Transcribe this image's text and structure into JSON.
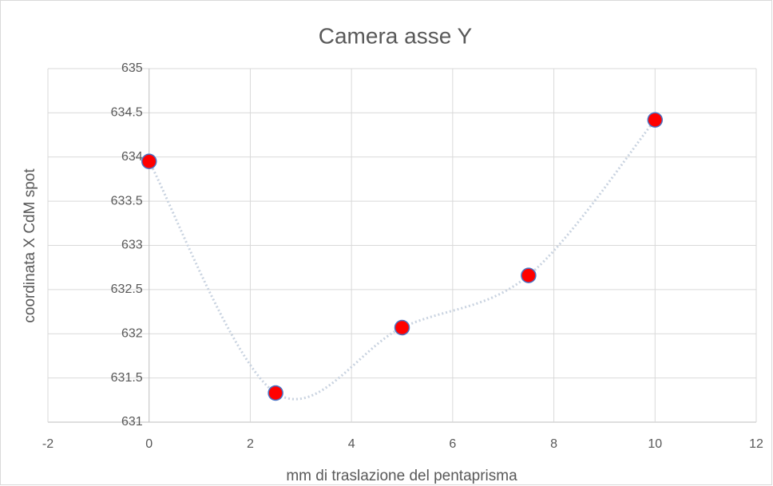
{
  "chart_data": {
    "type": "scatter",
    "title": "Camera asse Y",
    "x_label": "mm di traslazione del pentaprisma",
    "y_label": "coordinata X CdM spot",
    "x": [
      0,
      2.5,
      5,
      7.5,
      10
    ],
    "values": [
      633.95,
      631.33,
      632.07,
      632.66,
      634.42
    ],
    "color": "#ff0000",
    "marker_edge_color": "#4a72c4",
    "line_color": "#c9d3e0",
    "line_style": "dotted",
    "smooth": true,
    "xlim": [
      -2,
      12
    ],
    "xticks": [
      -2,
      0,
      2,
      4,
      6,
      8,
      10,
      12
    ],
    "ylim": [
      631,
      635
    ],
    "yticks": [
      631,
      631.5,
      632,
      632.5,
      633,
      633.5,
      634,
      634.5,
      635
    ],
    "grid": true
  }
}
